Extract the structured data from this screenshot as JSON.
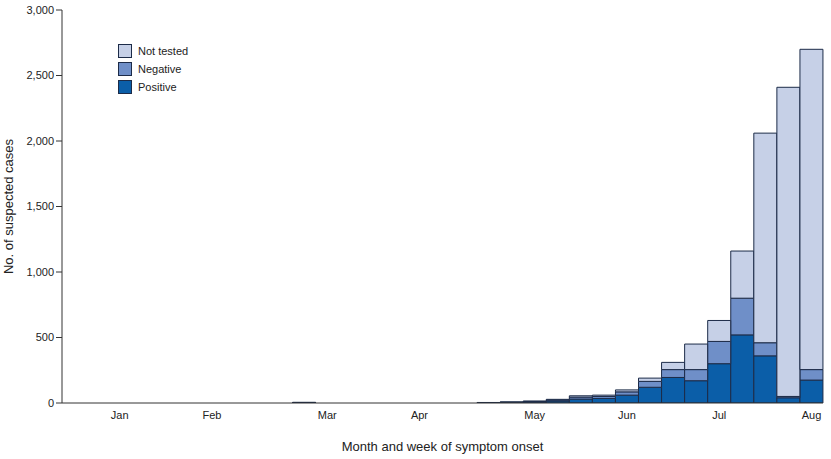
{
  "chart_data": {
    "type": "bar",
    "stacked": true,
    "x_label": "Month and week of symptom onset",
    "y_label": "No. of suspected cases",
    "categories": [
      null,
      null,
      "Jan",
      null,
      null,
      null,
      "Feb",
      null,
      null,
      null,
      null,
      "Mar",
      null,
      null,
      null,
      "Apr",
      null,
      null,
      null,
      null,
      "May",
      null,
      null,
      null,
      "Jun",
      null,
      null,
      null,
      "Jul",
      null,
      null,
      null,
      "Aug"
    ],
    "series": [
      {
        "name": "Positive",
        "color": "#0b5ea8",
        "values": [
          0,
          0,
          0,
          0,
          0,
          0,
          0,
          0,
          0,
          0,
          3,
          0,
          0,
          0,
          0,
          0,
          0,
          0,
          2,
          4,
          8,
          15,
          30,
          35,
          60,
          120,
          195,
          170,
          300,
          520,
          360,
          40,
          175
        ]
      },
      {
        "name": "Negative",
        "color": "#6f8fc8",
        "values": [
          0,
          0,
          0,
          0,
          0,
          0,
          0,
          0,
          0,
          0,
          1,
          0,
          0,
          0,
          0,
          0,
          0,
          0,
          1,
          2,
          4,
          8,
          15,
          15,
          25,
          45,
          60,
          85,
          170,
          280,
          100,
          10,
          80
        ]
      },
      {
        "name": "Not tested",
        "color": "#c6d0e7",
        "values": [
          0,
          0,
          0,
          0,
          0,
          0,
          0,
          0,
          0,
          0,
          1,
          0,
          0,
          0,
          0,
          0,
          0,
          0,
          1,
          2,
          3,
          5,
          10,
          10,
          15,
          25,
          55,
          195,
          160,
          360,
          1600,
          2360,
          2445
        ]
      }
    ],
    "ylim": [
      0,
      3000
    ],
    "yticks": [
      0,
      500,
      {
        "value": 1000,
        "label": "1,000"
      },
      {
        "value": 1500,
        "label": "1,500"
      },
      {
        "value": 2000,
        "label": "2,000"
      },
      {
        "value": 2500,
        "label": "2,500"
      },
      {
        "value": 3000,
        "label": "3,000"
      }
    ],
    "grid": false,
    "legend": "upper left"
  }
}
